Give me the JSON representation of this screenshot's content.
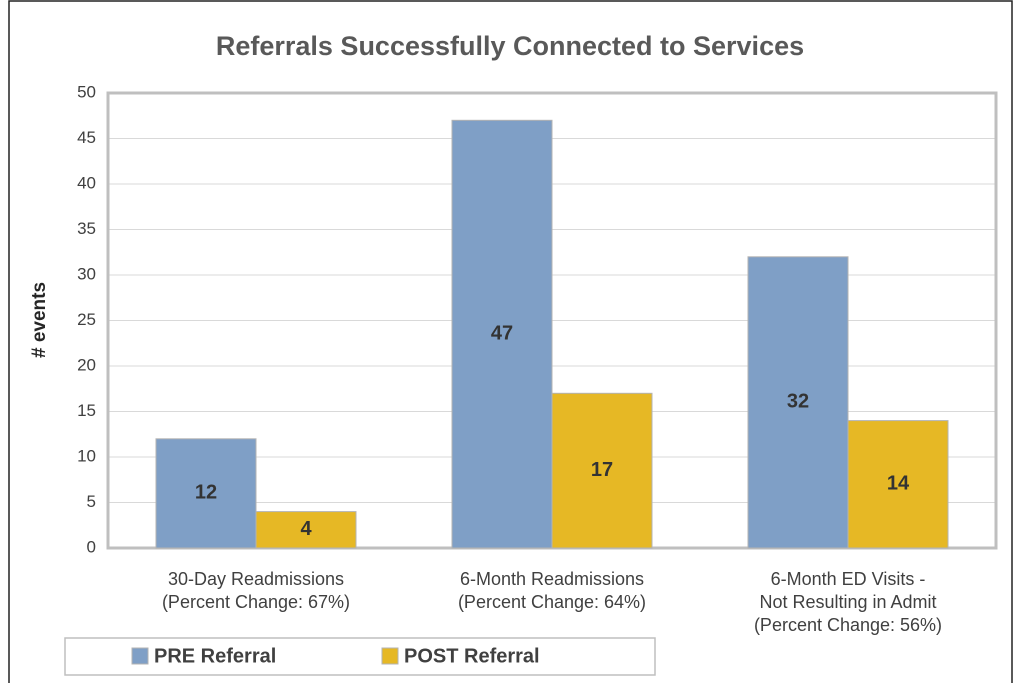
{
  "chart_data": {
    "type": "bar",
    "title": "Referrals Successfully Connected to Services",
    "ylabel": "# events",
    "categories": [
      "30-Day Readmissions\n(Percent Change: 67%)",
      "6-Month Readmissions\n(Percent Change: 64%)",
      "6-Month ED Visits -\nNot Resulting in Admit\n(Percent Change: 56%)"
    ],
    "series": [
      {
        "name": "PRE Referral",
        "color": "#7f9fc6",
        "values": [
          12,
          47,
          32
        ]
      },
      {
        "name": "POST Referral",
        "color": "#e6b825",
        "values": [
          4,
          17,
          14
        ]
      }
    ],
    "ylim": [
      0,
      50
    ],
    "yticks": [
      0,
      5,
      10,
      15,
      20,
      25,
      30,
      35,
      40,
      45,
      50
    ],
    "grid": true,
    "legend": "bottom"
  }
}
